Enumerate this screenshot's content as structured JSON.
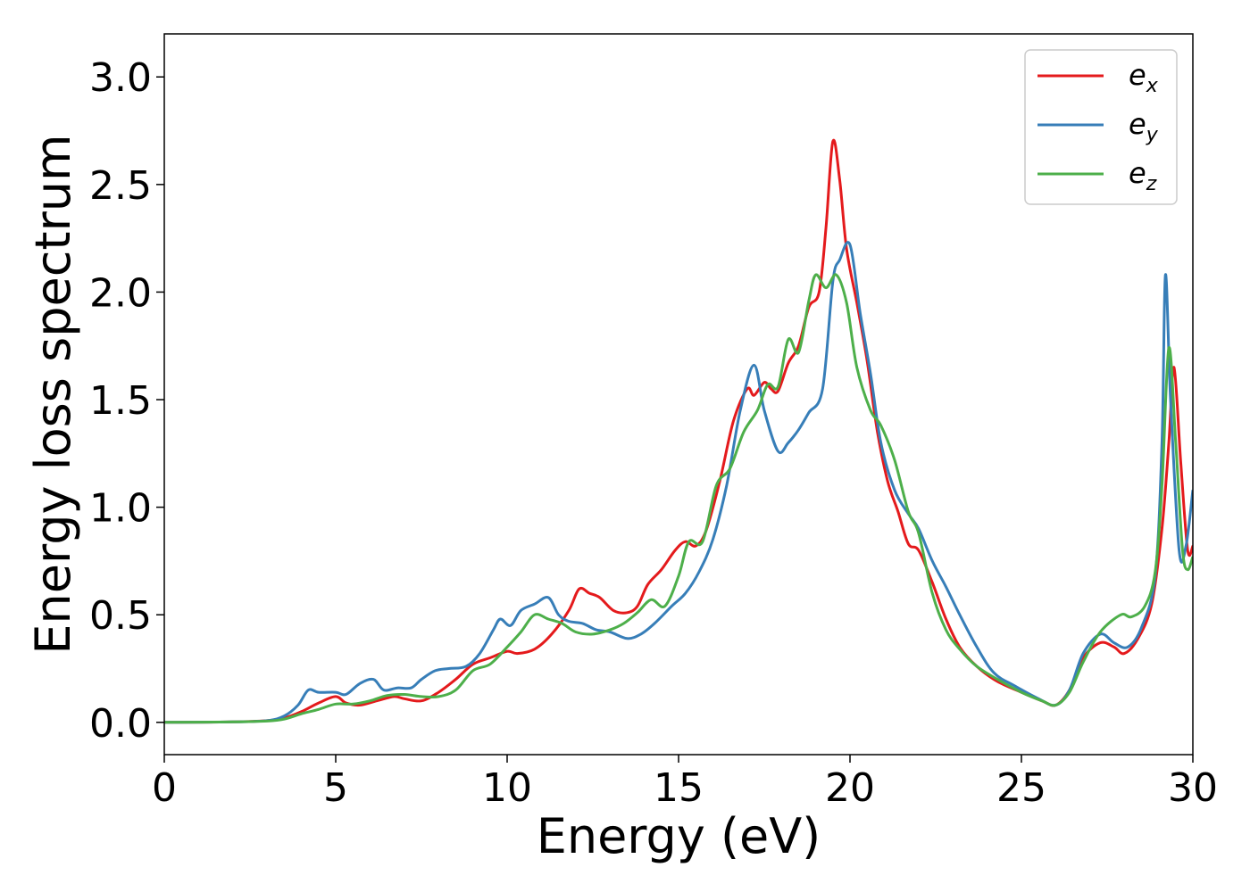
{
  "chart_data": {
    "type": "line",
    "xlabel": "Energy (eV)",
    "ylabel": "Energy loss spectrum",
    "xlim": [
      0,
      30
    ],
    "ylim": [
      -0.15,
      3.2
    ],
    "xticks": [
      "0",
      "5",
      "10",
      "15",
      "20",
      "25",
      "30"
    ],
    "yticks": [
      "0.0",
      "0.5",
      "1.0",
      "1.5",
      "2.0",
      "2.5",
      "3.0"
    ],
    "grid": false,
    "legend_position": "top-right",
    "series": [
      {
        "name": "e",
        "sub": "x",
        "color": "#e41a1c",
        "points": [
          [
            0,
            0
          ],
          [
            2,
            0.002
          ],
          [
            3,
            0.008
          ],
          [
            3.5,
            0.02
          ],
          [
            4,
            0.05
          ],
          [
            4.5,
            0.09
          ],
          [
            5,
            0.12
          ],
          [
            5.3,
            0.09
          ],
          [
            5.7,
            0.08
          ],
          [
            6.2,
            0.1
          ],
          [
            6.7,
            0.12
          ],
          [
            7,
            0.11
          ],
          [
            7.5,
            0.1
          ],
          [
            8,
            0.14
          ],
          [
            8.5,
            0.2
          ],
          [
            9,
            0.27
          ],
          [
            9.5,
            0.3
          ],
          [
            10,
            0.33
          ],
          [
            10.3,
            0.32
          ],
          [
            10.8,
            0.34
          ],
          [
            11.3,
            0.41
          ],
          [
            11.8,
            0.52
          ],
          [
            12.1,
            0.62
          ],
          [
            12.4,
            0.6
          ],
          [
            12.7,
            0.58
          ],
          [
            13.1,
            0.52
          ],
          [
            13.5,
            0.51
          ],
          [
            13.8,
            0.54
          ],
          [
            14.1,
            0.64
          ],
          [
            14.5,
            0.71
          ],
          [
            14.9,
            0.8
          ],
          [
            15.2,
            0.84
          ],
          [
            15.5,
            0.82
          ],
          [
            15.8,
            0.89
          ],
          [
            16.2,
            1.12
          ],
          [
            16.6,
            1.4
          ],
          [
            17,
            1.55
          ],
          [
            17.2,
            1.52
          ],
          [
            17.5,
            1.58
          ],
          [
            17.7,
            1.55
          ],
          [
            17.9,
            1.54
          ],
          [
            18.2,
            1.67
          ],
          [
            18.5,
            1.75
          ],
          [
            18.8,
            1.93
          ],
          [
            19.1,
            2.0
          ],
          [
            19.3,
            2.3
          ],
          [
            19.5,
            2.7
          ],
          [
            19.7,
            2.52
          ],
          [
            19.9,
            2.2
          ],
          [
            20.2,
            1.95
          ],
          [
            20.5,
            1.68
          ],
          [
            20.8,
            1.35
          ],
          [
            21.1,
            1.12
          ],
          [
            21.4,
            0.98
          ],
          [
            21.7,
            0.83
          ],
          [
            22.0,
            0.8
          ],
          [
            22.4,
            0.65
          ],
          [
            22.8,
            0.48
          ],
          [
            23.2,
            0.35
          ],
          [
            23.7,
            0.26
          ],
          [
            24.3,
            0.19
          ],
          [
            25,
            0.14
          ],
          [
            25.6,
            0.1
          ],
          [
            26,
            0.08
          ],
          [
            26.4,
            0.15
          ],
          [
            26.8,
            0.3
          ],
          [
            27.3,
            0.37
          ],
          [
            27.7,
            0.35
          ],
          [
            28.0,
            0.32
          ],
          [
            28.4,
            0.39
          ],
          [
            28.8,
            0.55
          ],
          [
            29.1,
            0.9
          ],
          [
            29.3,
            1.3
          ],
          [
            29.45,
            1.65
          ],
          [
            29.65,
            1.2
          ],
          [
            29.85,
            0.8
          ],
          [
            30,
            0.82
          ]
        ]
      },
      {
        "name": "e",
        "sub": "y",
        "color": "#377eb8",
        "points": [
          [
            0,
            0
          ],
          [
            2,
            0.002
          ],
          [
            3,
            0.008
          ],
          [
            3.5,
            0.03
          ],
          [
            3.9,
            0.08
          ],
          [
            4.2,
            0.15
          ],
          [
            4.5,
            0.14
          ],
          [
            5,
            0.14
          ],
          [
            5.3,
            0.13
          ],
          [
            5.7,
            0.18
          ],
          [
            6.1,
            0.2
          ],
          [
            6.4,
            0.15
          ],
          [
            6.8,
            0.16
          ],
          [
            7.2,
            0.16
          ],
          [
            7.5,
            0.2
          ],
          [
            7.9,
            0.24
          ],
          [
            8.3,
            0.25
          ],
          [
            8.8,
            0.26
          ],
          [
            9.2,
            0.32
          ],
          [
            9.6,
            0.43
          ],
          [
            9.8,
            0.48
          ],
          [
            10.1,
            0.45
          ],
          [
            10.4,
            0.52
          ],
          [
            10.8,
            0.55
          ],
          [
            11.2,
            0.58
          ],
          [
            11.5,
            0.5
          ],
          [
            11.8,
            0.47
          ],
          [
            12.2,
            0.46
          ],
          [
            12.6,
            0.43
          ],
          [
            13.0,
            0.42
          ],
          [
            13.5,
            0.39
          ],
          [
            13.9,
            0.41
          ],
          [
            14.3,
            0.46
          ],
          [
            14.8,
            0.54
          ],
          [
            15.2,
            0.6
          ],
          [
            15.6,
            0.7
          ],
          [
            16.0,
            0.85
          ],
          [
            16.4,
            1.1
          ],
          [
            16.8,
            1.45
          ],
          [
            17.2,
            1.66
          ],
          [
            17.5,
            1.45
          ],
          [
            17.9,
            1.26
          ],
          [
            18.2,
            1.3
          ],
          [
            18.5,
            1.36
          ],
          [
            18.8,
            1.44
          ],
          [
            19.2,
            1.55
          ],
          [
            19.5,
            2.05
          ],
          [
            19.7,
            2.15
          ],
          [
            20.0,
            2.22
          ],
          [
            20.3,
            1.9
          ],
          [
            20.6,
            1.62
          ],
          [
            20.9,
            1.3
          ],
          [
            21.3,
            1.08
          ],
          [
            21.7,
            0.97
          ],
          [
            22.0,
            0.9
          ],
          [
            22.4,
            0.75
          ],
          [
            22.8,
            0.63
          ],
          [
            23.2,
            0.5
          ],
          [
            23.7,
            0.35
          ],
          [
            24.2,
            0.23
          ],
          [
            24.8,
            0.17
          ],
          [
            25.5,
            0.11
          ],
          [
            26,
            0.08
          ],
          [
            26.4,
            0.15
          ],
          [
            26.8,
            0.32
          ],
          [
            27.3,
            0.41
          ],
          [
            27.7,
            0.37
          ],
          [
            28.1,
            0.35
          ],
          [
            28.5,
            0.44
          ],
          [
            28.9,
            0.68
          ],
          [
            29.1,
            1.3
          ],
          [
            29.2,
            2.08
          ],
          [
            29.35,
            1.5
          ],
          [
            29.6,
            0.8
          ],
          [
            29.8,
            0.82
          ],
          [
            30,
            1.08
          ]
        ]
      },
      {
        "name": "e",
        "sub": "z",
        "color": "#4daf4a",
        "points": [
          [
            0,
            0
          ],
          [
            2,
            0.002
          ],
          [
            3,
            0.006
          ],
          [
            3.5,
            0.015
          ],
          [
            4,
            0.04
          ],
          [
            4.5,
            0.06
          ],
          [
            5,
            0.085
          ],
          [
            5.5,
            0.085
          ],
          [
            6,
            0.1
          ],
          [
            6.5,
            0.125
          ],
          [
            7,
            0.13
          ],
          [
            7.5,
            0.12
          ],
          [
            8,
            0.12
          ],
          [
            8.5,
            0.15
          ],
          [
            9,
            0.24
          ],
          [
            9.5,
            0.27
          ],
          [
            10,
            0.35
          ],
          [
            10.4,
            0.42
          ],
          [
            10.8,
            0.5
          ],
          [
            11.2,
            0.48
          ],
          [
            11.6,
            0.46
          ],
          [
            12,
            0.42
          ],
          [
            12.5,
            0.41
          ],
          [
            13,
            0.43
          ],
          [
            13.4,
            0.46
          ],
          [
            13.8,
            0.51
          ],
          [
            14.2,
            0.57
          ],
          [
            14.6,
            0.54
          ],
          [
            15,
            0.68
          ],
          [
            15.3,
            0.84
          ],
          [
            15.7,
            0.84
          ],
          [
            16.1,
            1.1
          ],
          [
            16.5,
            1.18
          ],
          [
            16.9,
            1.35
          ],
          [
            17.3,
            1.45
          ],
          [
            17.6,
            1.57
          ],
          [
            17.9,
            1.56
          ],
          [
            18.2,
            1.78
          ],
          [
            18.5,
            1.72
          ],
          [
            18.8,
            1.96
          ],
          [
            19.0,
            2.08
          ],
          [
            19.3,
            2.02
          ],
          [
            19.6,
            2.08
          ],
          [
            19.9,
            1.95
          ],
          [
            20.2,
            1.65
          ],
          [
            20.6,
            1.45
          ],
          [
            20.9,
            1.38
          ],
          [
            21.3,
            1.22
          ],
          [
            21.7,
            0.98
          ],
          [
            22.0,
            0.88
          ],
          [
            22.4,
            0.6
          ],
          [
            22.8,
            0.43
          ],
          [
            23.2,
            0.34
          ],
          [
            23.7,
            0.26
          ],
          [
            24.3,
            0.2
          ],
          [
            25,
            0.14
          ],
          [
            25.6,
            0.1
          ],
          [
            26,
            0.08
          ],
          [
            26.4,
            0.14
          ],
          [
            26.8,
            0.28
          ],
          [
            27.3,
            0.42
          ],
          [
            27.9,
            0.5
          ],
          [
            28.2,
            0.49
          ],
          [
            28.6,
            0.54
          ],
          [
            28.9,
            0.7
          ],
          [
            29.1,
            1.1
          ],
          [
            29.3,
            1.74
          ],
          [
            29.5,
            1.3
          ],
          [
            29.7,
            0.8
          ],
          [
            29.85,
            0.71
          ],
          [
            30,
            0.77
          ]
        ]
      }
    ]
  }
}
